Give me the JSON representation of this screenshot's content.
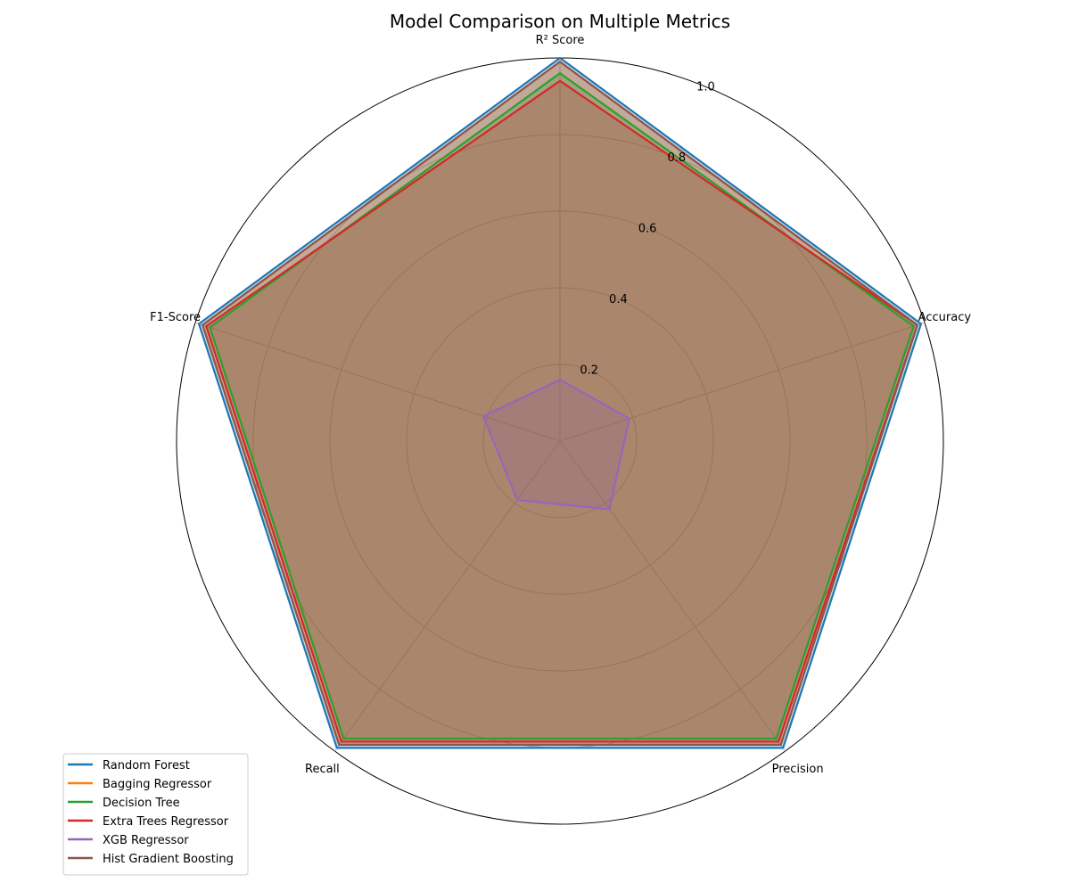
{
  "chart_data": {
    "type": "radar",
    "title": "Model Comparison on Multiple Metrics",
    "axes": [
      "R² Score",
      "Accuracy",
      "Precision",
      "Recall",
      "F1-Score"
    ],
    "rlim": [
      0,
      1.0
    ],
    "r_ticks": [
      0.2,
      0.4,
      0.6,
      0.8,
      1.0
    ],
    "r_tick_labels": [
      "0.2",
      "0.4",
      "0.6",
      "0.8",
      "1.0"
    ],
    "grid": true,
    "legend_position": "bottom-left",
    "fill_opacity": 0.25,
    "series": [
      {
        "name": "Random Forest",
        "color": "#1f77b4",
        "values": [
          1.0,
          0.99,
          0.99,
          0.99,
          0.99
        ]
      },
      {
        "name": "Bagging Regressor",
        "color": "#ff7f0e",
        "values": [
          0.99,
          0.98,
          0.98,
          0.98,
          0.98
        ]
      },
      {
        "name": "Decision Tree",
        "color": "#2ca02c",
        "values": [
          0.96,
          0.97,
          0.96,
          0.96,
          0.96
        ]
      },
      {
        "name": "Extra Trees Regressor",
        "color": "#d62728",
        "values": [
          0.94,
          0.98,
          0.97,
          0.97,
          0.97
        ]
      },
      {
        "name": "XGB Regressor",
        "color": "#9467bd",
        "values": [
          0.16,
          0.19,
          0.22,
          0.19,
          0.21
        ]
      },
      {
        "name": "Hist Gradient Boosting",
        "color": "#8c564b",
        "values": [
          0.99,
          0.98,
          0.98,
          0.98,
          0.98
        ]
      }
    ]
  }
}
